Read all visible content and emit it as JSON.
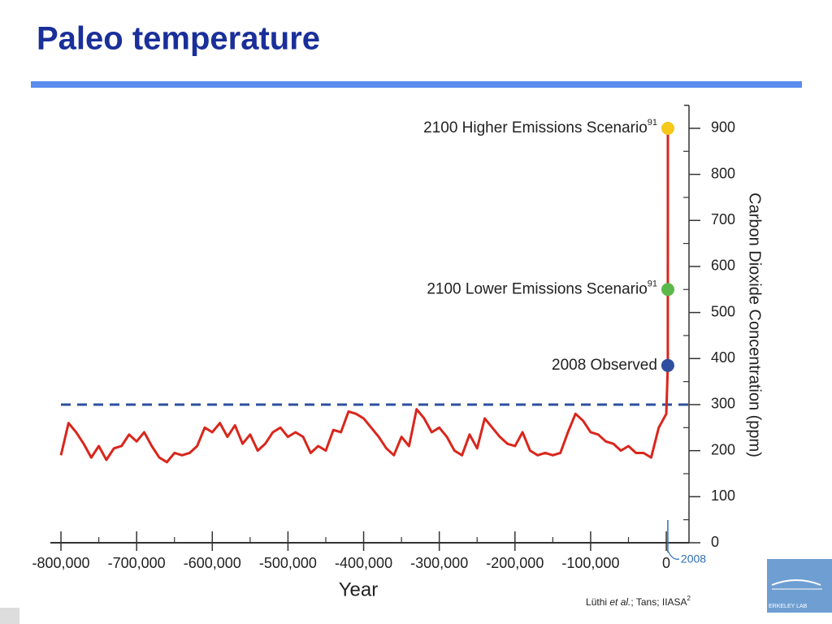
{
  "chart_data": {
    "type": "line",
    "title": "Paleo temperature",
    "x_label": "Year",
    "y_label": "Carbon Dioxide Concentration (ppm)",
    "xlim": [
      -814000,
      30000
    ],
    "ylim": [
      0,
      950
    ],
    "xticks": [
      {
        "value": -800000,
        "label": "-800,000"
      },
      {
        "value": -700000,
        "label": "-700,000"
      },
      {
        "value": -600000,
        "label": "-600,000"
      },
      {
        "value": -500000,
        "label": "-500,000"
      },
      {
        "value": -400000,
        "label": "-400,000"
      },
      {
        "value": -300000,
        "label": "-300,000"
      },
      {
        "value": -200000,
        "label": "-200,000"
      },
      {
        "value": -100000,
        "label": "-100,000"
      },
      0
    ],
    "x_minor_ticks": [
      -750000,
      -650000,
      -550000,
      -450000,
      -350000,
      -250000,
      -150000,
      -50000
    ],
    "yticks": [
      0,
      100,
      200,
      300,
      400,
      500,
      600,
      700,
      800,
      900
    ],
    "y_minor_ticks": [
      50,
      150,
      250,
      350,
      450,
      550,
      650,
      750,
      850
    ],
    "series": [
      {
        "name": "CO2",
        "color": "#d9261c",
        "x": [
          -800000,
          -790000,
          -780000,
          -770000,
          -760000,
          -750000,
          -740000,
          -730000,
          -720000,
          -710000,
          -700000,
          -690000,
          -680000,
          -670000,
          -660000,
          -650000,
          -640000,
          -630000,
          -620000,
          -610000,
          -600000,
          -590000,
          -580000,
          -570000,
          -560000,
          -550000,
          -540000,
          -530000,
          -520000,
          -510000,
          -500000,
          -490000,
          -480000,
          -470000,
          -460000,
          -450000,
          -440000,
          -430000,
          -420000,
          -410000,
          -400000,
          -390000,
          -380000,
          -370000,
          -360000,
          -350000,
          -340000,
          -330000,
          -320000,
          -310000,
          -300000,
          -290000,
          -280000,
          -270000,
          -260000,
          -250000,
          -240000,
          -230000,
          -220000,
          -210000,
          -200000,
          -190000,
          -180000,
          -170000,
          -160000,
          -150000,
          -140000,
          -130000,
          -120000,
          -110000,
          -100000,
          -90000,
          -80000,
          -70000,
          -60000,
          -50000,
          -40000,
          -30000,
          -20000,
          -10000,
          0,
          2008,
          2100
        ],
        "values": [
          190,
          260,
          240,
          215,
          185,
          210,
          180,
          205,
          210,
          235,
          220,
          240,
          210,
          185,
          175,
          195,
          190,
          195,
          210,
          250,
          240,
          260,
          230,
          255,
          215,
          235,
          200,
          215,
          240,
          250,
          230,
          240,
          230,
          195,
          210,
          200,
          245,
          240,
          285,
          280,
          270,
          250,
          230,
          205,
          190,
          230,
          210,
          290,
          270,
          240,
          250,
          230,
          200,
          190,
          235,
          205,
          270,
          250,
          230,
          215,
          210,
          240,
          200,
          190,
          195,
          190,
          195,
          240,
          280,
          265,
          240,
          235,
          220,
          215,
          200,
          210,
          195,
          195,
          185,
          250,
          280,
          385,
          900
        ]
      }
    ],
    "reference_line": {
      "value": 300,
      "color": "#2e4fa0"
    },
    "markers": [
      {
        "label": "2100 Higher Emissions Scenario",
        "superscript": "91",
        "x": 2100,
        "value": 900,
        "color": "#f5c81a"
      },
      {
        "label": "2100 Lower Emissions Scenario",
        "superscript": "91",
        "x": 2100,
        "value": 550,
        "color": "#5cb84a"
      },
      {
        "label": "2008 Observed",
        "x": 2008,
        "value": 385,
        "color": "#2e4fa0"
      }
    ],
    "x_annotation": {
      "label": "2008",
      "x": 2008,
      "color": "#2e6db4"
    },
    "source": [
      "Lüthi ",
      "et al.",
      "; Tans; IIASA",
      "2"
    ],
    "logo_text": "ERKELEY LAB"
  }
}
